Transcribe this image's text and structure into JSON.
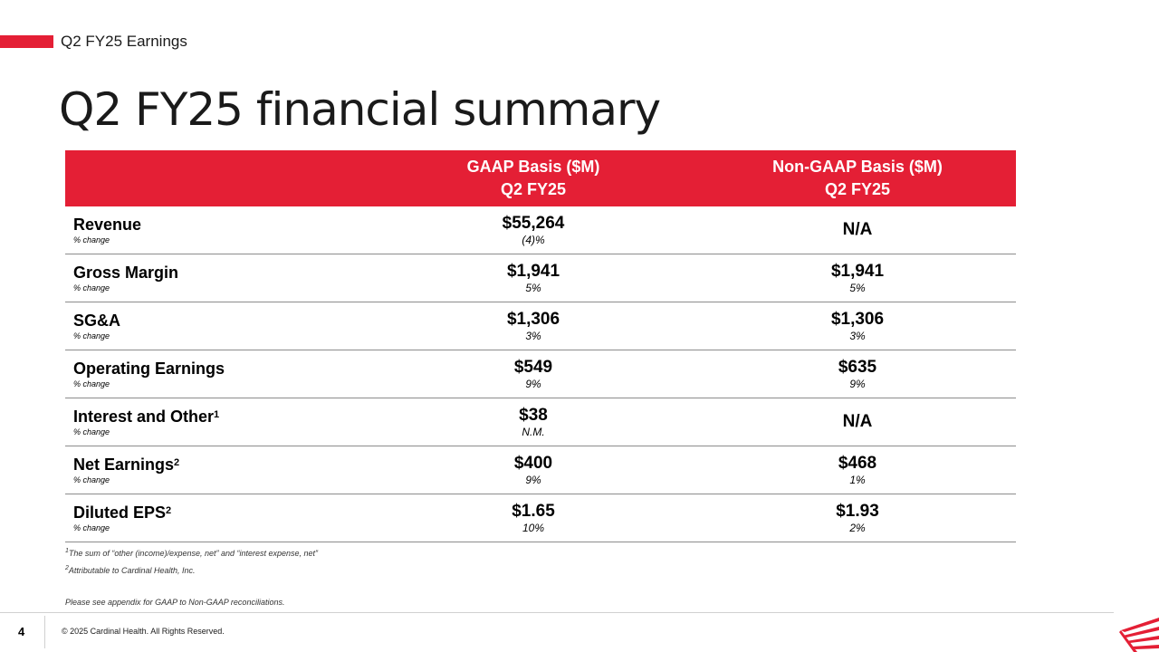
{
  "header": {
    "section_label": "Q2 FY25 Earnings",
    "title": "Q2 FY25 financial summary"
  },
  "table": {
    "gaap_header_line1": "GAAP Basis ($M)",
    "gaap_header_line2": "Q2 FY25",
    "nongaap_header_line1": "Non-GAAP Basis ($M)",
    "nongaap_header_line2": "Q2 FY25",
    "rows": [
      {
        "label": "Revenue",
        "sup": "",
        "sub": "% change",
        "gaap": "$55,264",
        "gaap_change": "(4)%",
        "nongaap": "N/A",
        "nongaap_change": ""
      },
      {
        "label": "Gross Margin",
        "sup": "",
        "sub": "% change",
        "gaap": "$1,941",
        "gaap_change": "5%",
        "nongaap": "$1,941",
        "nongaap_change": "5%"
      },
      {
        "label": "SG&A",
        "sup": "",
        "sub": "% change",
        "gaap": "$1,306",
        "gaap_change": "3%",
        "nongaap": "$1,306",
        "nongaap_change": "3%"
      },
      {
        "label": "Operating Earnings",
        "sup": "",
        "sub": "% change",
        "gaap": "$549",
        "gaap_change": "9%",
        "nongaap": "$635",
        "nongaap_change": "9%"
      },
      {
        "label": "Interest and Other",
        "sup": "1",
        "sub": "% change",
        "gaap": "$38",
        "gaap_change": "N.M.",
        "nongaap": "N/A",
        "nongaap_change": ""
      },
      {
        "label": "Net Earnings",
        "sup": "2",
        "sub": "% change",
        "gaap": "$400",
        "gaap_change": "9%",
        "nongaap": "$468",
        "nongaap_change": "1%"
      },
      {
        "label": "Diluted EPS",
        "sup": "2",
        "sub": "% change",
        "gaap": "$1.65",
        "gaap_change": "10%",
        "nongaap": "$1.93",
        "nongaap_change": "2%"
      }
    ]
  },
  "footnotes": {
    "note1_marker": "1",
    "note1": "The sum of “other (income)/expense, net” and “interest expense, net”",
    "note2_marker": "2",
    "note2": "Attributable to Cardinal Health, Inc.",
    "appendix": "Please see appendix for GAAP to Non-GAAP reconciliations."
  },
  "footer": {
    "page_number": "4",
    "copyright": "© 2025 Cardinal Health. All Rights Reserved."
  },
  "colors": {
    "brand_red": "#e41f35"
  },
  "icons": {
    "logo": "cardinal-health-logo-icon"
  }
}
